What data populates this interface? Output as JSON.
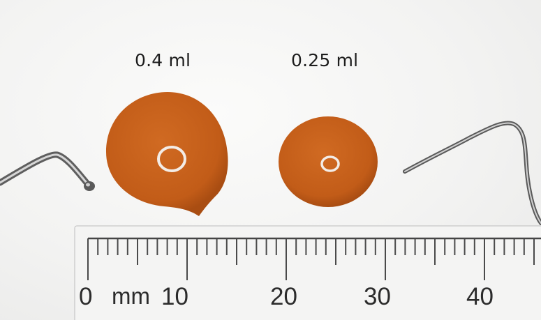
{
  "drops": {
    "left_volume": "0.4 ml",
    "right_volume": "0.25 ml",
    "drop_color": "#c8611c"
  },
  "ruler": {
    "unit": "mm",
    "labels": [
      "0",
      "10",
      "20",
      "30",
      "40"
    ]
  }
}
